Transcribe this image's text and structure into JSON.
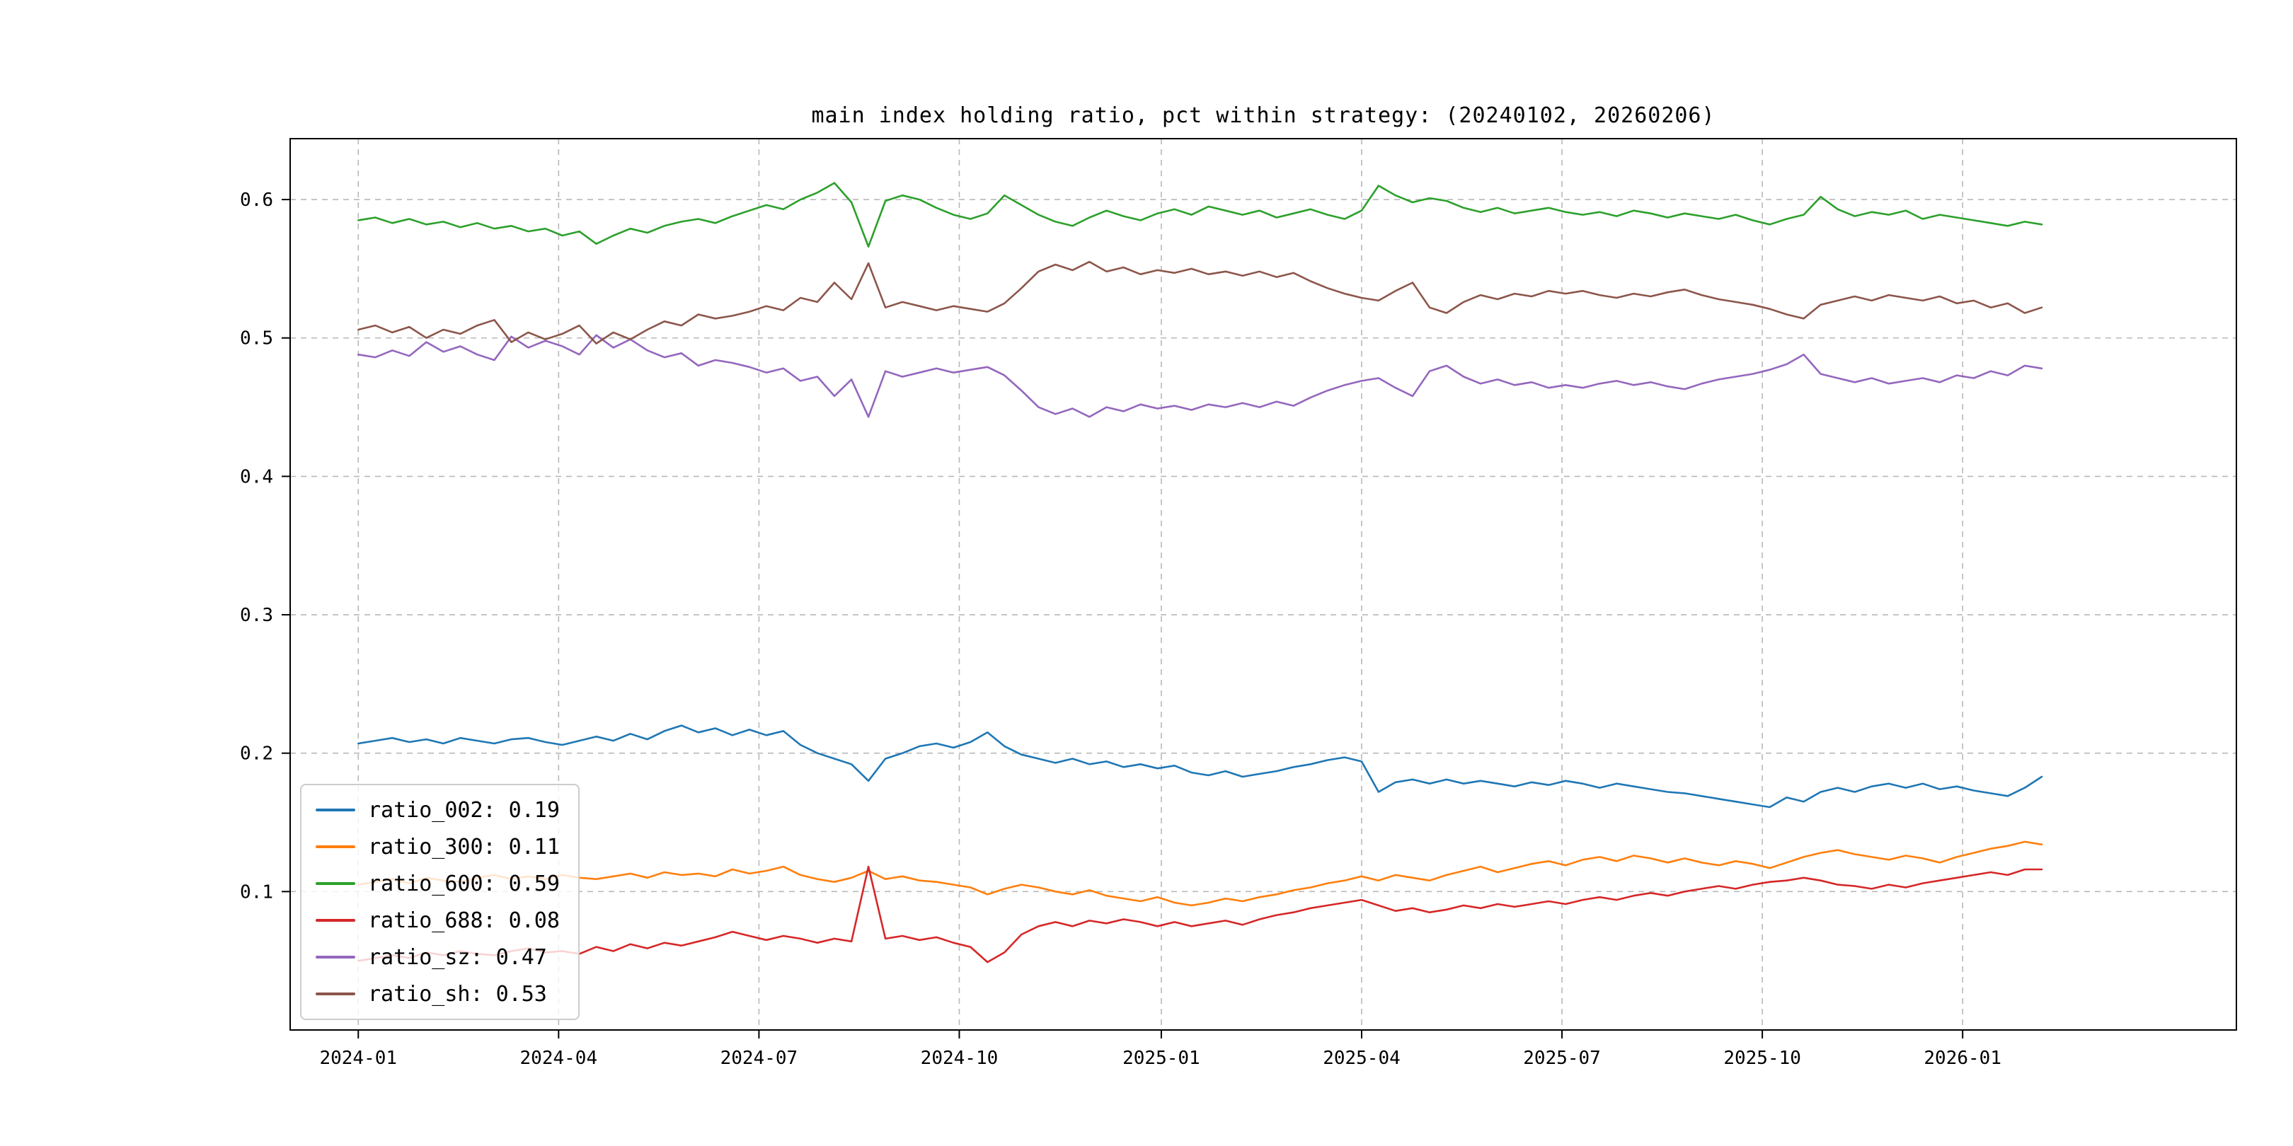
{
  "chart_data": {
    "type": "line",
    "title": "main index holding ratio, pct within strategy: (20240102, 20260206)",
    "xlabel": "",
    "ylabel": "",
    "x_range": [
      "2024-01-02",
      "2026-02-06"
    ],
    "ylim": [
      0.0,
      0.644
    ],
    "grid": true,
    "grid_style": "dashed",
    "legend_position": "lower left",
    "x_axis": {
      "start_frac": 0.035,
      "end_frac": 0.9
    },
    "yticks": [
      {
        "label": "0.1",
        "value": 0.1
      },
      {
        "label": "0.2",
        "value": 0.2
      },
      {
        "label": "0.3",
        "value": 0.3
      },
      {
        "label": "0.4",
        "value": 0.4
      },
      {
        "label": "0.5",
        "value": 0.5
      },
      {
        "label": "0.6",
        "value": 0.6
      }
    ],
    "xticks": [
      {
        "label": "2024-01",
        "t": 0.0
      },
      {
        "label": "2024-04",
        "t": 0.119
      },
      {
        "label": "2024-07",
        "t": 0.238
      },
      {
        "label": "2024-10",
        "t": 0.357
      },
      {
        "label": "2025-01",
        "t": 0.477
      },
      {
        "label": "2025-04",
        "t": 0.596
      },
      {
        "label": "2025-07",
        "t": 0.715
      },
      {
        "label": "2025-10",
        "t": 0.834
      },
      {
        "label": "2026-01",
        "t": 0.953
      }
    ],
    "series": [
      {
        "name": "ratio_002",
        "legend_label": "ratio_002: 0.19",
        "color": "#1f77b4",
        "values": [
          0.207,
          0.209,
          0.211,
          0.208,
          0.21,
          0.207,
          0.211,
          0.209,
          0.207,
          0.21,
          0.211,
          0.208,
          0.206,
          0.209,
          0.212,
          0.209,
          0.214,
          0.21,
          0.216,
          0.22,
          0.215,
          0.218,
          0.213,
          0.217,
          0.213,
          0.216,
          0.206,
          0.2,
          0.196,
          0.192,
          0.18,
          0.196,
          0.2,
          0.205,
          0.207,
          0.204,
          0.208,
          0.215,
          0.205,
          0.199,
          0.196,
          0.193,
          0.196,
          0.192,
          0.194,
          0.19,
          0.192,
          0.189,
          0.191,
          0.186,
          0.184,
          0.187,
          0.183,
          0.185,
          0.187,
          0.19,
          0.192,
          0.195,
          0.197,
          0.194,
          0.172,
          0.179,
          0.181,
          0.178,
          0.181,
          0.178,
          0.18,
          0.178,
          0.176,
          0.179,
          0.177,
          0.18,
          0.178,
          0.175,
          0.178,
          0.176,
          0.174,
          0.172,
          0.171,
          0.169,
          0.167,
          0.165,
          0.163,
          0.161,
          0.168,
          0.165,
          0.172,
          0.175,
          0.172,
          0.176,
          0.178,
          0.175,
          0.178,
          0.174,
          0.176,
          0.173,
          0.171,
          0.169,
          0.175,
          0.183
        ]
      },
      {
        "name": "ratio_300",
        "legend_label": "ratio_300: 0.11",
        "color": "#ff7f0e",
        "values": [
          0.105,
          0.107,
          0.109,
          0.106,
          0.11,
          0.108,
          0.107,
          0.11,
          0.112,
          0.109,
          0.111,
          0.109,
          0.112,
          0.11,
          0.109,
          0.111,
          0.113,
          0.11,
          0.114,
          0.112,
          0.113,
          0.111,
          0.116,
          0.113,
          0.115,
          0.118,
          0.112,
          0.109,
          0.107,
          0.11,
          0.115,
          0.109,
          0.111,
          0.108,
          0.107,
          0.105,
          0.103,
          0.098,
          0.102,
          0.105,
          0.103,
          0.1,
          0.098,
          0.101,
          0.097,
          0.095,
          0.093,
          0.096,
          0.092,
          0.09,
          0.092,
          0.095,
          0.093,
          0.096,
          0.098,
          0.101,
          0.103,
          0.106,
          0.108,
          0.111,
          0.108,
          0.112,
          0.11,
          0.108,
          0.112,
          0.115,
          0.118,
          0.114,
          0.117,
          0.12,
          0.122,
          0.119,
          0.123,
          0.125,
          0.122,
          0.126,
          0.124,
          0.121,
          0.124,
          0.121,
          0.119,
          0.122,
          0.12,
          0.117,
          0.121,
          0.125,
          0.128,
          0.13,
          0.127,
          0.125,
          0.123,
          0.126,
          0.124,
          0.121,
          0.125,
          0.128,
          0.131,
          0.133,
          0.136,
          0.134
        ]
      },
      {
        "name": "ratio_600",
        "legend_label": "ratio_600: 0.59",
        "color": "#2ca02c",
        "values": [
          0.585,
          0.587,
          0.583,
          0.586,
          0.582,
          0.584,
          0.58,
          0.583,
          0.579,
          0.581,
          0.577,
          0.579,
          0.574,
          0.577,
          0.568,
          0.574,
          0.579,
          0.576,
          0.581,
          0.584,
          0.586,
          0.583,
          0.588,
          0.592,
          0.596,
          0.593,
          0.6,
          0.605,
          0.612,
          0.598,
          0.566,
          0.599,
          0.603,
          0.6,
          0.594,
          0.589,
          0.586,
          0.59,
          0.603,
          0.596,
          0.589,
          0.584,
          0.581,
          0.587,
          0.592,
          0.588,
          0.585,
          0.59,
          0.593,
          0.589,
          0.595,
          0.592,
          0.589,
          0.592,
          0.587,
          0.59,
          0.593,
          0.589,
          0.586,
          0.592,
          0.61,
          0.603,
          0.598,
          0.601,
          0.599,
          0.594,
          0.591,
          0.594,
          0.59,
          0.592,
          0.594,
          0.591,
          0.589,
          0.591,
          0.588,
          0.592,
          0.59,
          0.587,
          0.59,
          0.588,
          0.586,
          0.589,
          0.585,
          0.582,
          0.586,
          0.589,
          0.602,
          0.593,
          0.588,
          0.591,
          0.589,
          0.592,
          0.586,
          0.589,
          0.587,
          0.585,
          0.583,
          0.581,
          0.584,
          0.582
        ]
      },
      {
        "name": "ratio_688",
        "legend_label": "ratio_688: 0.08",
        "color": "#d62728",
        "values": [
          0.05,
          0.052,
          0.054,
          0.052,
          0.056,
          0.054,
          0.057,
          0.055,
          0.054,
          0.057,
          0.059,
          0.056,
          0.057,
          0.055,
          0.06,
          0.057,
          0.062,
          0.059,
          0.063,
          0.061,
          0.064,
          0.067,
          0.071,
          0.068,
          0.065,
          0.068,
          0.066,
          0.063,
          0.066,
          0.064,
          0.118,
          0.066,
          0.068,
          0.065,
          0.067,
          0.063,
          0.06,
          0.049,
          0.056,
          0.069,
          0.075,
          0.078,
          0.075,
          0.079,
          0.077,
          0.08,
          0.078,
          0.075,
          0.078,
          0.075,
          0.077,
          0.079,
          0.076,
          0.08,
          0.083,
          0.085,
          0.088,
          0.09,
          0.092,
          0.094,
          0.09,
          0.086,
          0.088,
          0.085,
          0.087,
          0.09,
          0.088,
          0.091,
          0.089,
          0.091,
          0.093,
          0.091,
          0.094,
          0.096,
          0.094,
          0.097,
          0.099,
          0.097,
          0.1,
          0.102,
          0.104,
          0.102,
          0.105,
          0.107,
          0.108,
          0.11,
          0.108,
          0.105,
          0.104,
          0.102,
          0.105,
          0.103,
          0.106,
          0.108,
          0.11,
          0.112,
          0.114,
          0.112,
          0.116,
          0.116
        ]
      },
      {
        "name": "ratio_sz",
        "legend_label": "ratio_sz: 0.47",
        "color": "#9467bd",
        "values": [
          0.488,
          0.486,
          0.491,
          0.487,
          0.497,
          0.49,
          0.494,
          0.488,
          0.484,
          0.501,
          0.493,
          0.498,
          0.494,
          0.488,
          0.502,
          0.493,
          0.499,
          0.491,
          0.486,
          0.489,
          0.48,
          0.484,
          0.482,
          0.479,
          0.475,
          0.478,
          0.469,
          0.472,
          0.458,
          0.47,
          0.443,
          0.476,
          0.472,
          0.475,
          0.478,
          0.475,
          0.477,
          0.479,
          0.473,
          0.462,
          0.45,
          0.445,
          0.449,
          0.443,
          0.45,
          0.447,
          0.452,
          0.449,
          0.451,
          0.448,
          0.452,
          0.45,
          0.453,
          0.45,
          0.454,
          0.451,
          0.457,
          0.462,
          0.466,
          0.469,
          0.471,
          0.464,
          0.458,
          0.476,
          0.48,
          0.472,
          0.467,
          0.47,
          0.466,
          0.468,
          0.464,
          0.466,
          0.464,
          0.467,
          0.469,
          0.466,
          0.468,
          0.465,
          0.463,
          0.467,
          0.47,
          0.472,
          0.474,
          0.477,
          0.481,
          0.488,
          0.474,
          0.471,
          0.468,
          0.471,
          0.467,
          0.469,
          0.471,
          0.468,
          0.473,
          0.471,
          0.476,
          0.473,
          0.48,
          0.478
        ]
      },
      {
        "name": "ratio_sh",
        "legend_label": "ratio_sh: 0.53",
        "color": "#8c564b",
        "values": [
          0.506,
          0.509,
          0.504,
          0.508,
          0.5,
          0.506,
          0.503,
          0.509,
          0.513,
          0.497,
          0.504,
          0.499,
          0.503,
          0.509,
          0.496,
          0.504,
          0.499,
          0.506,
          0.512,
          0.509,
          0.517,
          0.514,
          0.516,
          0.519,
          0.523,
          0.52,
          0.529,
          0.526,
          0.54,
          0.528,
          0.554,
          0.522,
          0.526,
          0.523,
          0.52,
          0.523,
          0.521,
          0.519,
          0.525,
          0.536,
          0.548,
          0.553,
          0.549,
          0.555,
          0.548,
          0.551,
          0.546,
          0.549,
          0.547,
          0.55,
          0.546,
          0.548,
          0.545,
          0.548,
          0.544,
          0.547,
          0.541,
          0.536,
          0.532,
          0.529,
          0.527,
          0.534,
          0.54,
          0.522,
          0.518,
          0.526,
          0.531,
          0.528,
          0.532,
          0.53,
          0.534,
          0.532,
          0.534,
          0.531,
          0.529,
          0.532,
          0.53,
          0.533,
          0.535,
          0.531,
          0.528,
          0.526,
          0.524,
          0.521,
          0.517,
          0.514,
          0.524,
          0.527,
          0.53,
          0.527,
          0.531,
          0.529,
          0.527,
          0.53,
          0.525,
          0.527,
          0.522,
          0.525,
          0.518,
          0.522
        ]
      }
    ]
  }
}
